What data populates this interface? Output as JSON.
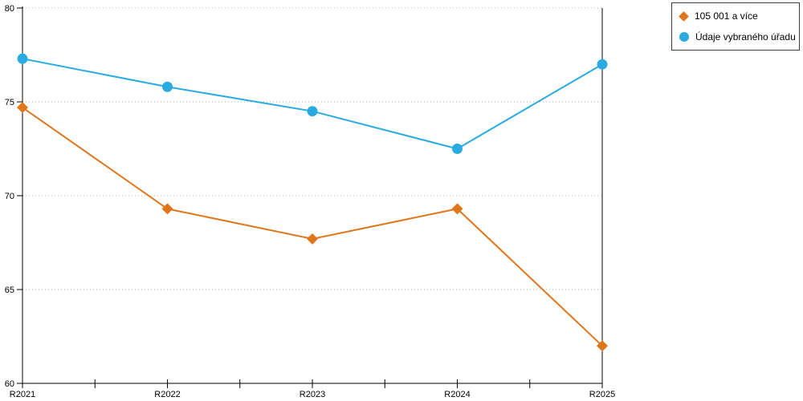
{
  "chart_data": {
    "type": "line",
    "title": "",
    "xlabel": "",
    "ylabel": "",
    "categories": [
      "R2021",
      "R2022",
      "R2023",
      "R2024",
      "R2025"
    ],
    "series": [
      {
        "name": "105 001 a více",
        "marker": "diamond",
        "color": "#e0761c",
        "values": [
          74.7,
          69.3,
          67.7,
          69.3,
          62.0
        ]
      },
      {
        "name": "Údaje vybraného úřadu",
        "marker": "circle",
        "color": "#29abe2",
        "values": [
          77.3,
          75.8,
          74.5,
          72.5,
          77.0
        ]
      }
    ],
    "ylim": [
      60,
      80
    ],
    "yticks": [
      60,
      65,
      70,
      75,
      80
    ],
    "grid": "horizontal-dotted",
    "grid_color": "#ababab",
    "axis_color": "#000000",
    "tick_label_color": "#000000",
    "legend_position": "top-right",
    "legend_border_color": "#3c3c3c"
  }
}
